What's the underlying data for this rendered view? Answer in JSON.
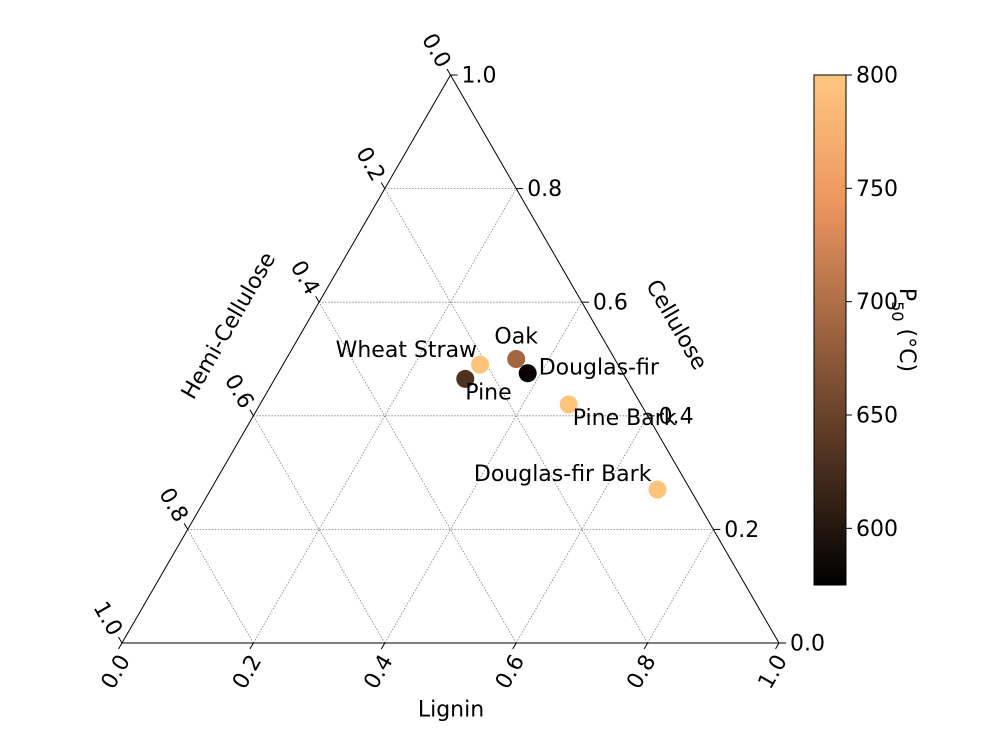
{
  "chart_data": {
    "type": "scatter",
    "subtype": "ternary",
    "axes": {
      "bottom": {
        "label": "Lignin",
        "component": "lignin"
      },
      "right": {
        "label": "Cellulose",
        "component": "cellulose"
      },
      "left": {
        "label": "Hemi-Cellulose",
        "component": "hemicellulose"
      }
    },
    "ticks": [
      0.0,
      0.2,
      0.4,
      0.6,
      0.8,
      1.0
    ],
    "tick_labels": [
      "0.0",
      "0.2",
      "0.4",
      "0.6",
      "0.8",
      "1.0"
    ],
    "grid": true,
    "points": [
      {
        "label": "Wheat Straw",
        "lignin": 0.3,
        "cellulose": 0.49,
        "hemicellulose": 0.21,
        "p50": 795
      },
      {
        "label": "Oak",
        "lignin": 0.35,
        "cellulose": 0.5,
        "hemicellulose": 0.15,
        "p50": 690
      },
      {
        "label": "Douglas-fir",
        "lignin": 0.38,
        "cellulose": 0.475,
        "hemicellulose": 0.145,
        "p50": 580
      },
      {
        "label": "Pine",
        "lignin": 0.29,
        "cellulose": 0.465,
        "hemicellulose": 0.245,
        "p50": 630
      },
      {
        "label": "Pine Bark",
        "lignin": 0.47,
        "cellulose": 0.42,
        "hemicellulose": 0.11,
        "p50": 795
      },
      {
        "label": "Douglas-fir Bark",
        "lignin": 0.68,
        "cellulose": 0.27,
        "hemicellulose": 0.05,
        "p50": 795
      }
    ],
    "colorbar": {
      "label": "P",
      "label_sub": "50",
      "label_unit": " (°C)",
      "min": 575,
      "max": 800,
      "ticks": [
        600,
        650,
        700,
        750,
        800
      ],
      "tick_labels": [
        "600",
        "650",
        "700",
        "750",
        "800"
      ],
      "colormap": "copper"
    }
  }
}
